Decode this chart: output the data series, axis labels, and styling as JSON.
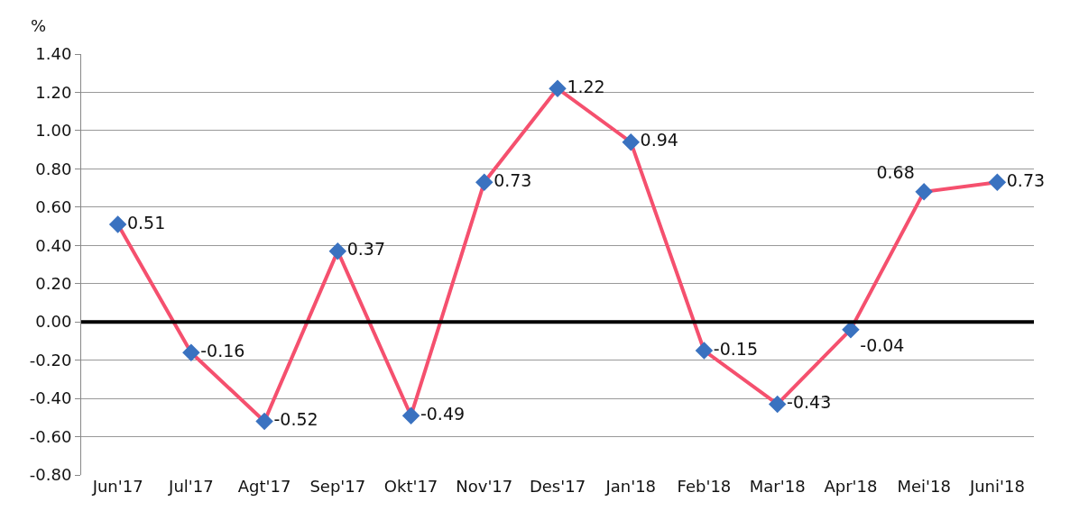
{
  "chart_data": {
    "type": "line",
    "ylabel": "%",
    "categories": [
      "Jun'17",
      "Jul'17",
      "Agt'17",
      "Sep'17",
      "Okt'17",
      "Nov'17",
      "Des'17",
      "Jan'18",
      "Feb'18",
      "Mar'18",
      "Apr'18",
      "Mei'18",
      "Juni'18"
    ],
    "series": [
      {
        "color": "#f5506e",
        "colors": [
          "#3a72c0",
          "#3a72c0",
          "#3a72c0",
          "#3a72c0",
          "#3a72c0",
          "#3a72c0",
          "#3a72c0",
          "#3a72c0",
          "#3a72c0",
          "#3a72c0",
          "#3a72c0",
          "#3a72c0",
          "#3a72c0"
        ],
        "values": [
          0.51,
          -0.16,
          -0.52,
          0.37,
          -0.49,
          0.73,
          1.22,
          0.94,
          -0.15,
          -0.43,
          -0.04,
          0.68,
          0.73
        ]
      }
    ],
    "data_labels": true,
    "marker": "diamond",
    "line_style": "solid",
    "grid": "y",
    "ylim": [
      -0.8,
      1.4
    ],
    "yticks": [
      {
        "value": -0.8,
        "label": "-0.80"
      },
      {
        "value": -0.6,
        "label": "-0.60"
      },
      {
        "value": -0.4,
        "label": "-0.40"
      },
      {
        "value": -0.2,
        "label": "-0.20"
      },
      {
        "value": 0,
        "label": "0.00"
      },
      {
        "value": 0.2,
        "label": "0.20"
      },
      {
        "value": 0.4,
        "label": "0.40"
      },
      {
        "value": 0.6,
        "label": "0.60"
      },
      {
        "value": 0.8,
        "label": "0.80"
      },
      {
        "value": 1.0,
        "label": "1.00"
      },
      {
        "value": 1.2,
        "label": "1.20"
      },
      {
        "value": 1.4,
        "label": "1.40"
      }
    ],
    "ref_lines": [
      {
        "axis": "y",
        "value": 0,
        "color": "#000000"
      }
    ]
  }
}
